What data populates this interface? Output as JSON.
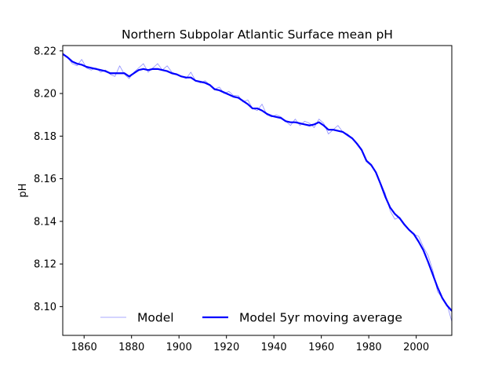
{
  "chart_data": {
    "type": "line",
    "title": "Northern Subpolar Atlantic Surface mean pH",
    "xlabel": "",
    "ylabel": "pH",
    "xlim": [
      1851,
      2015
    ],
    "ylim": [
      8.0865,
      8.2225
    ],
    "xticks": [
      1860,
      1880,
      1900,
      1920,
      1940,
      1960,
      1980,
      2000
    ],
    "yticks": [
      8.1,
      8.12,
      8.14,
      8.16,
      8.18,
      8.2,
      8.22
    ],
    "ytick_labels": [
      "8.10",
      "8.12",
      "8.14",
      "8.16",
      "8.18",
      "8.20",
      "8.22"
    ],
    "grid": false,
    "legend_position": "lower center",
    "series": [
      {
        "name": "Model",
        "color": "#0000ff",
        "style": "thin-translucent",
        "x": [
          1851,
          1853,
          1855,
          1857,
          1859,
          1861,
          1863,
          1865,
          1867,
          1869,
          1871,
          1873,
          1875,
          1877,
          1879,
          1881,
          1883,
          1885,
          1887,
          1889,
          1891,
          1893,
          1895,
          1897,
          1899,
          1901,
          1903,
          1905,
          1907,
          1909,
          1911,
          1913,
          1915,
          1917,
          1919,
          1921,
          1923,
          1925,
          1927,
          1929,
          1931,
          1933,
          1935,
          1937,
          1939,
          1941,
          1943,
          1945,
          1947,
          1949,
          1951,
          1953,
          1955,
          1957,
          1959,
          1961,
          1963,
          1965,
          1967,
          1969,
          1971,
          1973,
          1975,
          1977,
          1979,
          1981,
          1983,
          1985,
          1987,
          1989,
          1991,
          1993,
          1995,
          1997,
          1999,
          2001,
          2003,
          2005,
          2007,
          2009,
          2011,
          2013,
          2015
        ],
        "y": [
          8.219,
          8.217,
          8.214,
          8.213,
          8.216,
          8.212,
          8.211,
          8.212,
          8.21,
          8.211,
          8.209,
          8.208,
          8.213,
          8.209,
          8.207,
          8.21,
          8.212,
          8.214,
          8.21,
          8.212,
          8.214,
          8.211,
          8.213,
          8.21,
          8.209,
          8.208,
          8.207,
          8.21,
          8.206,
          8.205,
          8.206,
          8.204,
          8.202,
          8.203,
          8.2,
          8.201,
          8.199,
          8.199,
          8.196,
          8.197,
          8.193,
          8.192,
          8.195,
          8.19,
          8.189,
          8.19,
          8.189,
          8.187,
          8.185,
          8.188,
          8.185,
          8.187,
          8.186,
          8.184,
          8.188,
          8.186,
          8.181,
          8.183,
          8.185,
          8.182,
          8.181,
          8.179,
          8.176,
          8.174,
          8.168,
          8.166,
          8.163,
          8.158,
          8.153,
          8.145,
          8.141,
          8.142,
          8.139,
          8.136,
          8.134,
          8.133,
          8.128,
          8.124,
          8.117,
          8.107,
          8.104,
          8.101,
          8.093
        ]
      },
      {
        "name": "Model 5yr moving average",
        "color": "#0000ff",
        "style": "thick",
        "x": [
          1851,
          1853,
          1855,
          1857,
          1859,
          1861,
          1863,
          1865,
          1867,
          1869,
          1871,
          1873,
          1875,
          1877,
          1879,
          1881,
          1883,
          1885,
          1887,
          1889,
          1891,
          1893,
          1895,
          1897,
          1899,
          1901,
          1903,
          1905,
          1907,
          1909,
          1911,
          1913,
          1915,
          1917,
          1919,
          1921,
          1923,
          1925,
          1927,
          1929,
          1931,
          1933,
          1935,
          1937,
          1939,
          1941,
          1943,
          1945,
          1947,
          1949,
          1951,
          1953,
          1955,
          1957,
          1959,
          1961,
          1963,
          1965,
          1967,
          1969,
          1971,
          1973,
          1975,
          1977,
          1979,
          1981,
          1983,
          1985,
          1987,
          1989,
          1991,
          1993,
          1995,
          1997,
          1999,
          2001,
          2003,
          2005,
          2007,
          2009,
          2011,
          2013,
          2015
        ],
        "y": [
          8.2185,
          8.217,
          8.215,
          8.214,
          8.2135,
          8.2125,
          8.212,
          8.2115,
          8.211,
          8.2105,
          8.2095,
          8.2095,
          8.2095,
          8.2095,
          8.208,
          8.2095,
          8.211,
          8.2115,
          8.211,
          8.2115,
          8.2115,
          8.211,
          8.2105,
          8.2095,
          8.209,
          8.208,
          8.2075,
          8.2075,
          8.206,
          8.2055,
          8.205,
          8.204,
          8.202,
          8.2015,
          8.2005,
          8.1995,
          8.1985,
          8.198,
          8.1965,
          8.195,
          8.193,
          8.193,
          8.192,
          8.1905,
          8.1895,
          8.189,
          8.1885,
          8.187,
          8.1865,
          8.1865,
          8.186,
          8.1855,
          8.185,
          8.1855,
          8.1865,
          8.185,
          8.183,
          8.183,
          8.1825,
          8.182,
          8.1805,
          8.179,
          8.1765,
          8.1735,
          8.1685,
          8.1665,
          8.163,
          8.1575,
          8.1515,
          8.1465,
          8.1435,
          8.1415,
          8.1385,
          8.136,
          8.134,
          8.1305,
          8.1265,
          8.121,
          8.115,
          8.109,
          8.104,
          8.1005,
          8.098
        ]
      }
    ]
  }
}
